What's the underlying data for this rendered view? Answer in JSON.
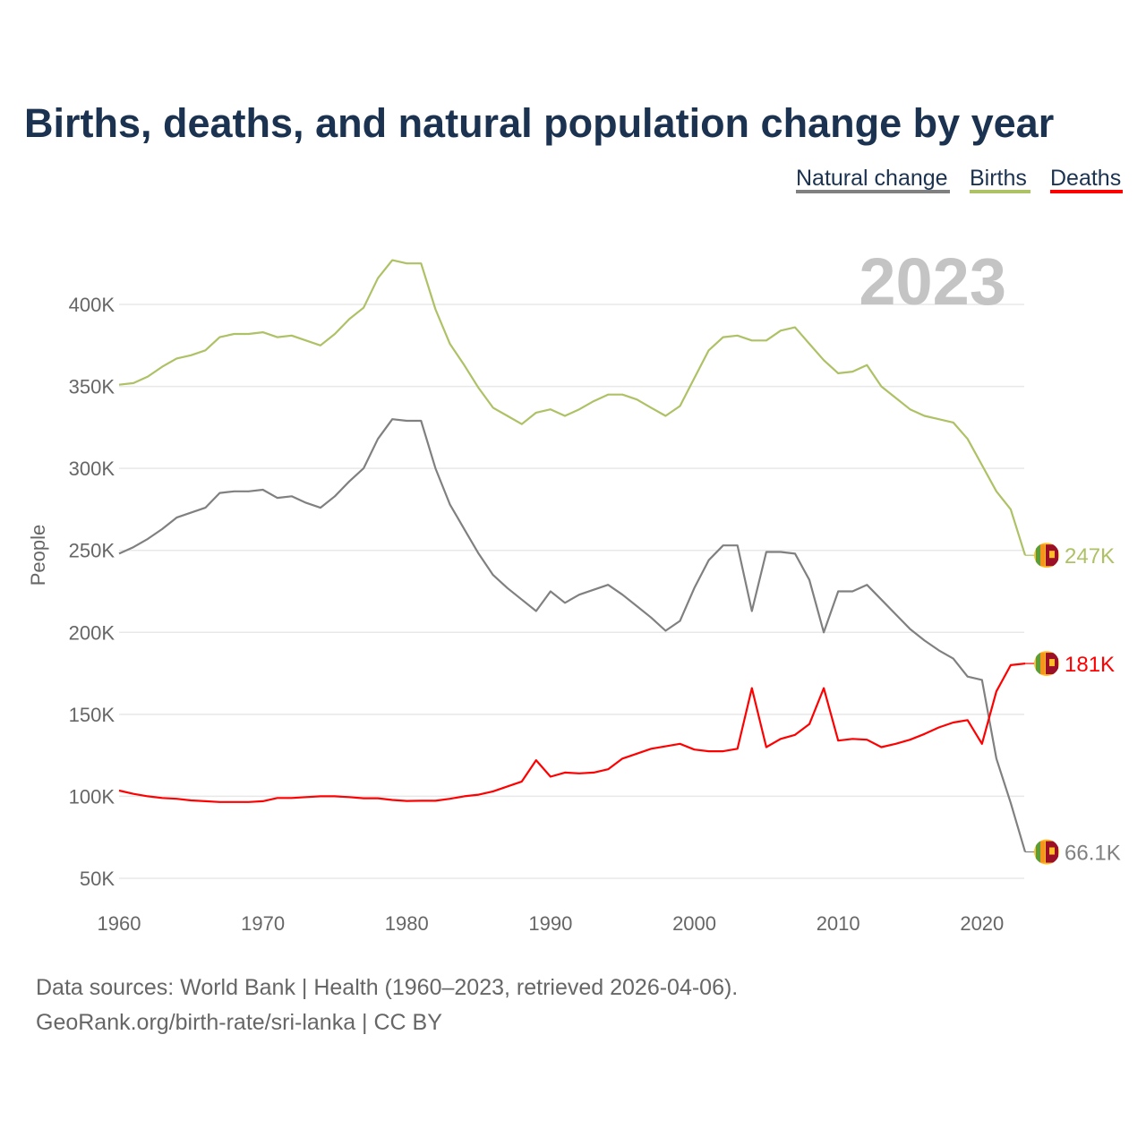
{
  "chart_data": {
    "type": "line",
    "title": "Births, deaths, and natural population change by year",
    "xlabel": "",
    "ylabel": "People",
    "xlim": [
      1960,
      2023
    ],
    "ylim": [
      50000,
      400000
    ],
    "x_ticks": [
      1960,
      1970,
      1980,
      1990,
      2000,
      2010,
      2020
    ],
    "x_tick_labels": [
      "1960",
      "1970",
      "1980",
      "1990",
      "2000",
      "2010",
      "2020"
    ],
    "y_ticks": [
      50000,
      100000,
      150000,
      200000,
      250000,
      300000,
      350000,
      400000
    ],
    "y_tick_labels": [
      "50K",
      "100K",
      "150K",
      "200K",
      "250K",
      "300K",
      "350K",
      "400K"
    ],
    "grid": true,
    "legend_position": "top-right",
    "year_watermark": "2023",
    "x": [
      1960,
      1961,
      1962,
      1963,
      1964,
      1965,
      1966,
      1967,
      1968,
      1969,
      1970,
      1971,
      1972,
      1973,
      1974,
      1975,
      1976,
      1977,
      1978,
      1979,
      1980,
      1981,
      1982,
      1983,
      1984,
      1985,
      1986,
      1987,
      1988,
      1989,
      1990,
      1991,
      1992,
      1993,
      1994,
      1995,
      1996,
      1997,
      1998,
      1999,
      2000,
      2001,
      2002,
      2003,
      2004,
      2005,
      2006,
      2007,
      2008,
      2009,
      2010,
      2011,
      2012,
      2013,
      2014,
      2015,
      2016,
      2017,
      2018,
      2019,
      2020,
      2021,
      2022,
      2023
    ],
    "series": [
      {
        "name": "Natural change",
        "color": "#808080",
        "end_label": "66.1K",
        "values": [
          248000,
          252000,
          257000,
          263000,
          270000,
          273000,
          276000,
          285000,
          286000,
          286000,
          287000,
          282000,
          283000,
          279000,
          276000,
          283000,
          292000,
          300000,
          318000,
          330000,
          329000,
          329000,
          300000,
          278000,
          263000,
          248000,
          235000,
          227000,
          220000,
          213000,
          225000,
          218000,
          223000,
          226000,
          229000,
          223000,
          216000,
          209000,
          201000,
          207000,
          227000,
          244000,
          253000,
          253000,
          213000,
          249000,
          249000,
          248000,
          232000,
          200000,
          225000,
          225000,
          229000,
          220000,
          211000,
          202000,
          195000,
          189000,
          184000,
          173000,
          171000,
          123000,
          96000,
          66100
        ]
      },
      {
        "name": "Births",
        "color": "#adc165",
        "end_label": "247K",
        "values": [
          351000,
          352000,
          356000,
          362000,
          367000,
          369000,
          372000,
          380000,
          382000,
          382000,
          383000,
          380000,
          381000,
          378000,
          375000,
          382000,
          391000,
          398000,
          416000,
          427000,
          425000,
          425000,
          397000,
          376000,
          363000,
          349000,
          337000,
          332000,
          327000,
          334000,
          336000,
          332000,
          336000,
          341000,
          345000,
          345000,
          342000,
          337000,
          332000,
          338000,
          355000,
          372000,
          380000,
          381000,
          378000,
          378000,
          384000,
          386000,
          376000,
          366000,
          358000,
          359000,
          363000,
          350000,
          343000,
          336000,
          332000,
          330000,
          328000,
          318000,
          302000,
          286000,
          275000,
          247000
        ]
      },
      {
        "name": "Deaths",
        "color": "#ff0000",
        "end_label": "181K",
        "values": [
          103500,
          101500,
          100000,
          99000,
          98500,
          97500,
          97000,
          96500,
          96500,
          96500,
          97000,
          99000,
          99000,
          99500,
          100000,
          100000,
          99500,
          98800,
          98800,
          97800,
          97200,
          97300,
          97300,
          98500,
          100000,
          101000,
          103000,
          106000,
          109000,
          122000,
          112000,
          114500,
          114000,
          114500,
          116500,
          123000,
          126000,
          129000,
          130500,
          132000,
          128500,
          127500,
          127500,
          129000,
          166000,
          130000,
          135000,
          137500,
          144000,
          166000,
          134000,
          135000,
          134500,
          130000,
          132000,
          134500,
          138000,
          142000,
          145000,
          146500,
          132000,
          164000,
          180000,
          181000
        ]
      }
    ]
  },
  "footer": {
    "source_line": "Data sources: World Bank | Health (1960–2023, retrieved 2026-04-06).",
    "credit_line": "GeoRank.org/birth-rate/sri-lanka | CC BY"
  }
}
